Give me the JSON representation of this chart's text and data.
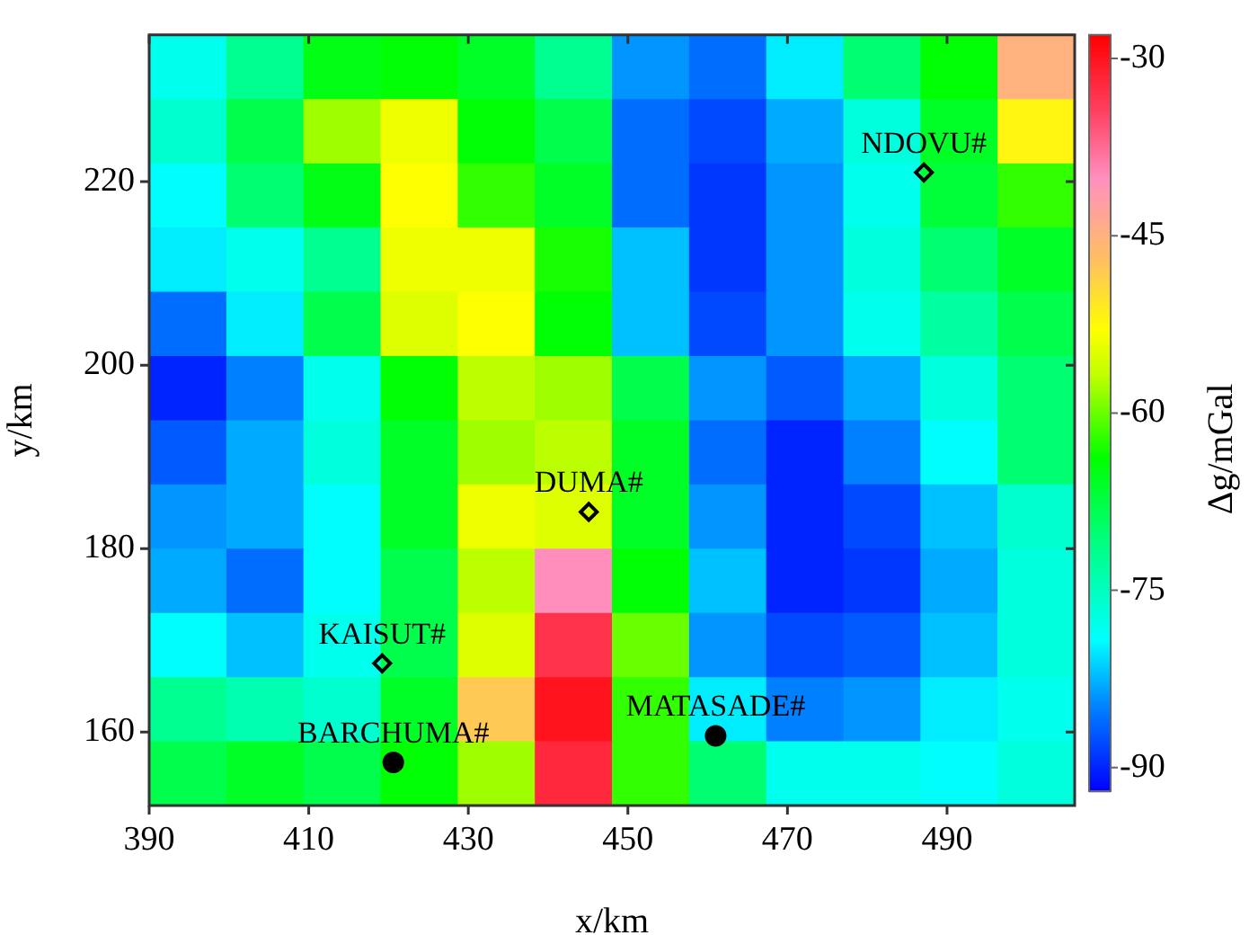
{
  "chart_data": {
    "type": "heatmap",
    "xlabel": "x/km",
    "ylabel": "y/km",
    "clabel": "Δg/mGal",
    "xlim": [
      390,
      506
    ],
    "ylim": [
      152,
      236
    ],
    "xticks": [
      390,
      410,
      430,
      450,
      470,
      490
    ],
    "yticks": [
      160,
      180,
      200,
      220
    ],
    "clim": [
      -92,
      -28
    ],
    "cticks": [
      -30,
      -45,
      -60,
      -75,
      -90
    ],
    "cells": [
      [
        -78,
        -72,
        -65,
        -64,
        -66,
        -72,
        -84,
        -86,
        -80,
        -70,
        -64,
        -45
      ],
      [
        -76,
        -68,
        -58,
        -54,
        -64,
        -68,
        -86,
        -88,
        -83,
        -77,
        -66,
        -52
      ],
      [
        -79,
        -70,
        -65,
        -53,
        -62,
        -66,
        -86,
        -89,
        -84,
        -78,
        -67,
        -62
      ],
      [
        -80,
        -78,
        -72,
        -54,
        -54,
        -63,
        -82,
        -89,
        -84,
        -77,
        -70,
        -66
      ],
      [
        -86,
        -80,
        -68,
        -55,
        -53,
        -64,
        -82,
        -88,
        -84,
        -78,
        -73,
        -68
      ],
      [
        -90,
        -85,
        -78,
        -64,
        -57,
        -58,
        -68,
        -84,
        -87,
        -83,
        -77,
        -70
      ],
      [
        -87,
        -83,
        -77,
        -66,
        -58,
        -57,
        -66,
        -86,
        -90,
        -85,
        -79,
        -70
      ],
      [
        -84,
        -83,
        -79,
        -66,
        -54,
        -55,
        -66,
        -84,
        -90,
        -88,
        -82,
        -76
      ],
      [
        -83,
        -86,
        -79,
        -68,
        -57,
        -40,
        -64,
        -82,
        -90,
        -89,
        -83,
        -77
      ],
      [
        -79,
        -82,
        -78,
        -68,
        -55,
        -33,
        -60,
        -84,
        -88,
        -87,
        -82,
        -77
      ],
      [
        -72,
        -74,
        -76,
        -66,
        -48,
        -30,
        -62,
        -80,
        -85,
        -84,
        -80,
        -78
      ],
      [
        -68,
        -66,
        -68,
        -64,
        -58,
        -32,
        -62,
        -70,
        -78,
        -78,
        -79,
        -77
      ]
    ],
    "series": [
      {
        "type": "scatter",
        "marker": "diamond",
        "color": "#000000",
        "x": [
          487.1,
          445.1,
          419.2
        ],
        "values": [
          221,
          184,
          167.5
        ]
      },
      {
        "type": "scatter",
        "marker": "circle",
        "color": "#000000",
        "x": [
          420.6,
          461
        ],
        "values": [
          156.7,
          159.6
        ]
      }
    ],
    "annotations": [
      {
        "text": "NDOVU#",
        "x": 487.1,
        "y": 221
      },
      {
        "text": "DUMA#",
        "x": 445.1,
        "y": 184
      },
      {
        "text": "KAISUT#",
        "x": 419.2,
        "y": 167.5
      },
      {
        "text": "BARCHUMA#",
        "x": 420.6,
        "y": 156.7
      },
      {
        "text": "MATASADE#",
        "x": 461,
        "y": 159.6
      }
    ]
  }
}
